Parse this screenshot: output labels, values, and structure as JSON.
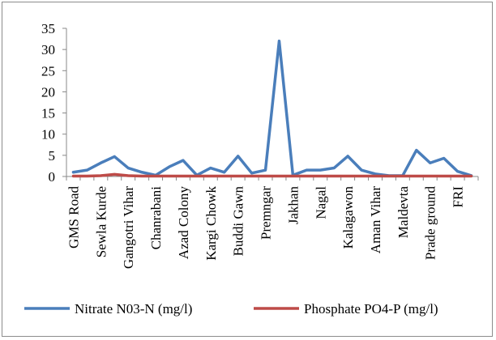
{
  "chart_data": {
    "type": "line",
    "title": "",
    "xlabel": "",
    "ylabel": "",
    "ylim": [
      0,
      35
    ],
    "yticks": [
      0,
      5,
      10,
      15,
      20,
      25,
      30,
      35
    ],
    "categories": [
      "GMS Road",
      "",
      "Sewla Kurde",
      "",
      "Gangotri Vihar",
      "",
      "Chanrabani",
      "",
      "Azad Colony",
      "",
      "Kargi Chowk",
      "",
      "Buddi Gawn",
      "",
      "Premngar",
      "",
      "Jakhan",
      "",
      "Nagal",
      "",
      "Kalagawon",
      "",
      "Aman Vihar",
      "",
      "Maldevta",
      "",
      "Prade ground",
      "",
      "FRI",
      ""
    ],
    "series": [
      {
        "name": "Nitrate N03-N (mg/l)",
        "color": "#4a7ebb",
        "values": [
          1.0,
          1.5,
          3.2,
          4.7,
          2.0,
          1.0,
          0.3,
          2.3,
          3.8,
          0.3,
          2.0,
          1.0,
          4.8,
          0.8,
          1.5,
          32.0,
          0.3,
          1.5,
          1.5,
          2.0,
          4.8,
          1.5,
          0.6,
          0.2,
          0.2,
          6.2,
          3.2,
          4.3,
          1.2,
          0.2
        ]
      },
      {
        "name": "Phosphate PO4-P (mg/l)",
        "color": "#be4b48",
        "values": [
          0.1,
          0.1,
          0.2,
          0.5,
          0.2,
          0.1,
          0.1,
          0.1,
          0.1,
          0.1,
          0.1,
          0.1,
          0.1,
          0.1,
          0.1,
          0.1,
          0.1,
          0.1,
          0.1,
          0.1,
          0.1,
          0.1,
          0.1,
          0.1,
          0.1,
          0.1,
          0.1,
          0.1,
          0.1,
          0.1
        ]
      }
    ],
    "grid": false,
    "legend_position": "bottom"
  }
}
